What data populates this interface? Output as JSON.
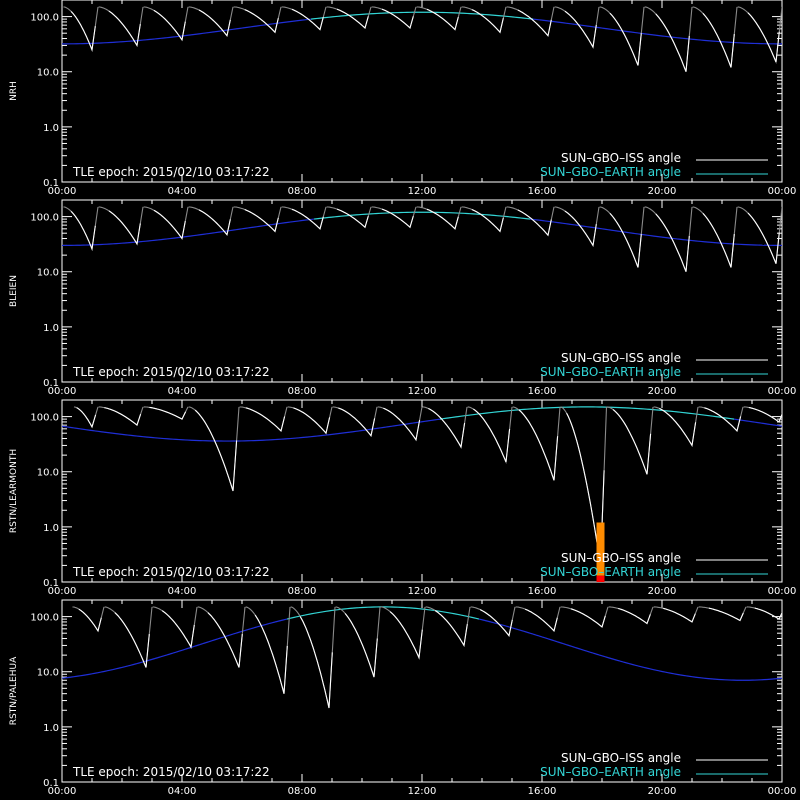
{
  "colors": {
    "background": "#000000",
    "axes": "#ffffff",
    "iss_visible": "#ffffff",
    "iss_faded": "#8a8a8a",
    "earth_high": "#33d6d6",
    "earth_low": "#1f2fd8",
    "marker_top": "#ff8c00",
    "marker_bottom": "#ff0000"
  },
  "chart_data": [
    {
      "type": "line",
      "ylabel": "NRH",
      "epoch_label": "TLE epoch: 2015/02/10 03:17:22",
      "legend": [
        "SUN–GBO–ISS angle",
        "SUN–GBO–EARTH angle"
      ],
      "legend_placement": "bottom-right",
      "x_ticks": [
        "00:00",
        "04:00",
        "08:00",
        "12:00",
        "16:00",
        "20:00",
        "00:00"
      ],
      "y_ticks": [
        "0.1",
        "1.0",
        "10.0",
        "100.0"
      ],
      "xlim_hours": [
        0,
        24
      ],
      "ylim": [
        0.1,
        200
      ],
      "y_scale": "log",
      "earth": {
        "mid_hour": 12,
        "min": 32,
        "max": 120,
        "threshold": 90
      },
      "iss": {
        "first_peak_hour": 0.05,
        "period_hours": 1.53,
        "peak": 150,
        "visible_from": 0.27,
        "visible_to": 0.55
      },
      "iss_minima": [
        {
          "hour": 1.0,
          "value": 25
        },
        {
          "hour": 2.5,
          "value": 30
        },
        {
          "hour": 4.0,
          "value": 38
        },
        {
          "hour": 5.5,
          "value": 45
        },
        {
          "hour": 7.1,
          "value": 52
        },
        {
          "hour": 8.6,
          "value": 58
        },
        {
          "hour": 10.1,
          "value": 62
        },
        {
          "hour": 11.6,
          "value": 62
        },
        {
          "hour": 13.1,
          "value": 58
        },
        {
          "hour": 14.6,
          "value": 52
        },
        {
          "hour": 16.2,
          "value": 45
        },
        {
          "hour": 17.7,
          "value": 28
        },
        {
          "hour": 19.2,
          "value": 13
        },
        {
          "hour": 20.8,
          "value": 10
        },
        {
          "hour": 22.3,
          "value": 12
        },
        {
          "hour": 23.8,
          "value": 15
        }
      ],
      "marker": null
    },
    {
      "type": "line",
      "ylabel": "BLEIEN",
      "epoch_label": "TLE epoch: 2015/02/10 03:17:22",
      "legend": [
        "SUN–GBO–ISS angle",
        "SUN–GBO–EARTH angle"
      ],
      "legend_placement": "bottom-right",
      "x_ticks": [
        "00:00",
        "04:00",
        "08:00",
        "12:00",
        "16:00",
        "20:00",
        "00:00"
      ],
      "y_ticks": [
        "0.1",
        "1.0",
        "10.0",
        "100.0"
      ],
      "xlim_hours": [
        0,
        24
      ],
      "ylim": [
        0.1,
        200
      ],
      "y_scale": "log",
      "earth": {
        "mid_hour": 12,
        "min": 30,
        "max": 120,
        "threshold": 90
      },
      "iss": {
        "first_peak_hour": 0.05,
        "period_hours": 1.53,
        "peak": 150,
        "visible_from": 0.27,
        "visible_to": 0.55
      },
      "iss_minima": [
        {
          "hour": 1.0,
          "value": 26
        },
        {
          "hour": 2.5,
          "value": 32
        },
        {
          "hour": 4.0,
          "value": 40
        },
        {
          "hour": 5.5,
          "value": 47
        },
        {
          "hour": 7.1,
          "value": 54
        },
        {
          "hour": 8.6,
          "value": 60
        },
        {
          "hour": 10.1,
          "value": 64
        },
        {
          "hour": 11.6,
          "value": 64
        },
        {
          "hour": 13.1,
          "value": 60
        },
        {
          "hour": 14.6,
          "value": 54
        },
        {
          "hour": 16.2,
          "value": 46
        },
        {
          "hour": 17.7,
          "value": 30
        },
        {
          "hour": 19.2,
          "value": 12
        },
        {
          "hour": 20.8,
          "value": 10
        },
        {
          "hour": 22.3,
          "value": 12
        },
        {
          "hour": 23.8,
          "value": 14
        }
      ],
      "marker": null
    },
    {
      "type": "line",
      "ylabel": "RSTN/LEARMONTH",
      "epoch_label": "TLE epoch: 2015/02/10 03:17:22",
      "legend": [
        "SUN–GBO–ISS angle",
        "SUN–GBO–EARTH angle"
      ],
      "legend_placement": "bottom-right",
      "x_ticks": [
        "00:00",
        "04:00",
        "08:00",
        "12:00",
        "16:00",
        "20:00",
        "00:00"
      ],
      "y_ticks": [
        "0.1",
        "1.0",
        "10.0",
        "100.0"
      ],
      "xlim_hours": [
        0,
        24
      ],
      "ylim": [
        0.1,
        200
      ],
      "y_scale": "log",
      "earth": {
        "mid_hour": 17.5,
        "min": 36,
        "max": 150,
        "threshold": 90
      },
      "iss": {
        "first_peak_hour": 0.4,
        "period_hours": 1.53,
        "peak": 150,
        "visible_from": 0.15,
        "visible_to": 0.6
      },
      "iss_minima": [
        {
          "hour": 1.0,
          "value": 65
        },
        {
          "hour": 2.5,
          "value": 70
        },
        {
          "hour": 4.0,
          "value": 90
        },
        {
          "hour": 5.7,
          "value": 4.5
        },
        {
          "hour": 7.3,
          "value": 55
        },
        {
          "hour": 8.8,
          "value": 50
        },
        {
          "hour": 10.3,
          "value": 45
        },
        {
          "hour": 11.8,
          "value": 38
        },
        {
          "hour": 13.3,
          "value": 28
        },
        {
          "hour": 14.8,
          "value": 15
        },
        {
          "hour": 16.4,
          "value": 7
        },
        {
          "hour": 17.95,
          "value": 0.2
        },
        {
          "hour": 19.5,
          "value": 9
        },
        {
          "hour": 21.0,
          "value": 30
        },
        {
          "hour": 22.5,
          "value": 55
        },
        {
          "hour": 23.9,
          "value": 80
        }
      ],
      "marker": {
        "hour": 17.95,
        "top": 1.2,
        "mid": 0.13,
        "bottom": 0.1
      }
    },
    {
      "type": "line",
      "ylabel": "RSTN/PALEHUA",
      "epoch_label": "TLE epoch: 2015/02/10 03:17:22",
      "legend": [
        "SUN–GBO–ISS angle",
        "SUN–GBO–EARTH angle"
      ],
      "legend_placement": "bottom-right",
      "x_ticks": [
        "00:00",
        "04:00",
        "08:00",
        "12:00",
        "16:00",
        "20:00",
        "00:00"
      ],
      "y_ticks": [
        "0.1",
        "1.0",
        "10.0",
        "100.0"
      ],
      "xlim_hours": [
        0,
        24
      ],
      "ylim": [
        0.1,
        200
      ],
      "y_scale": "log",
      "earth": {
        "mid_hour": 10.7,
        "min": 7,
        "max": 150,
        "threshold": 90
      },
      "iss": {
        "first_peak_hour": 0.35,
        "period_hours": 1.53,
        "peak": 150,
        "visible_from": 0.25,
        "visible_to": 0.55
      },
      "iss_minima": [
        {
          "hour": 1.2,
          "value": 55
        },
        {
          "hour": 2.8,
          "value": 12
        },
        {
          "hour": 4.3,
          "value": 28
        },
        {
          "hour": 5.9,
          "value": 12
        },
        {
          "hour": 7.4,
          "value": 4
        },
        {
          "hour": 8.9,
          "value": 2.2
        },
        {
          "hour": 10.4,
          "value": 8
        },
        {
          "hour": 11.9,
          "value": 18
        },
        {
          "hour": 13.4,
          "value": 30
        },
        {
          "hour": 14.9,
          "value": 45
        },
        {
          "hour": 16.4,
          "value": 55
        },
        {
          "hour": 18.0,
          "value": 65
        },
        {
          "hour": 19.5,
          "value": 75
        },
        {
          "hour": 21.0,
          "value": 80
        },
        {
          "hour": 22.6,
          "value": 85
        },
        {
          "hour": 23.9,
          "value": 90
        }
      ],
      "marker": null
    }
  ]
}
